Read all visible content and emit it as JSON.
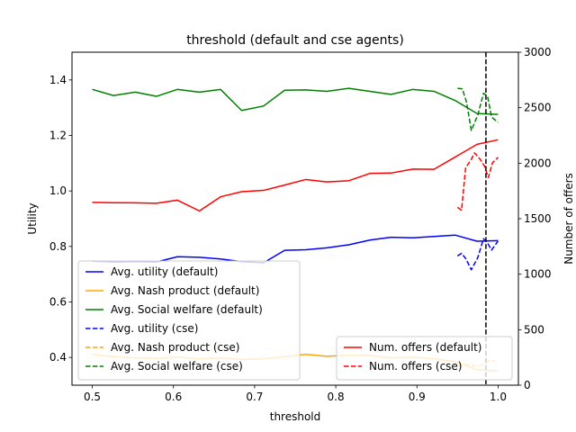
{
  "chart_data": {
    "type": "line",
    "title": "threshold (default and cse agents)",
    "xlabel": "threshold",
    "ylabel": "Utility",
    "y2label": "Number of offers",
    "xlim": [
      0.475,
      1.025
    ],
    "ylim": [
      0.3,
      1.5
    ],
    "y2lim": [
      0,
      3000
    ],
    "xticks": [
      "0.5",
      "0.6",
      "0.7",
      "0.8",
      "0.9",
      "1.0"
    ],
    "yticks": [
      "0.4",
      "0.6",
      "0.8",
      "1.0",
      "1.2",
      "1.4"
    ],
    "y2ticks": [
      "0",
      "500",
      "1000",
      "1500",
      "2000",
      "2500",
      "3000"
    ],
    "grid": false,
    "vline": {
      "x": 0.985,
      "color": "#000000",
      "style": "dashed"
    },
    "series": [
      {
        "name": "Avg. utility (default)",
        "axis": "left",
        "color": "#0000ff",
        "style": "solid",
        "x": [
          0.5,
          0.526,
          0.553,
          0.579,
          0.605,
          0.632,
          0.658,
          0.684,
          0.711,
          0.737,
          0.763,
          0.789,
          0.816,
          0.842,
          0.868,
          0.895,
          0.921,
          0.947,
          0.974,
          1.0
        ],
        "y": [
          0.747,
          0.744,
          0.745,
          0.744,
          0.763,
          0.761,
          0.755,
          0.745,
          0.741,
          0.786,
          0.788,
          0.795,
          0.806,
          0.823,
          0.833,
          0.831,
          0.836,
          0.841,
          0.819,
          0.821
        ]
      },
      {
        "name": "Avg. Nash product (default)",
        "axis": "left",
        "color": "#ffa500",
        "style": "solid",
        "x": [
          0.5,
          0.526,
          0.553,
          0.579,
          0.605,
          0.632,
          0.658,
          0.684,
          0.711,
          0.737,
          0.763,
          0.789,
          0.816,
          0.842,
          0.868,
          0.895,
          0.921,
          0.947,
          0.974,
          1.0
        ],
        "y": [
          0.411,
          0.403,
          0.398,
          0.396,
          0.401,
          0.395,
          0.398,
          0.393,
          0.395,
          0.403,
          0.411,
          0.404,
          0.408,
          0.407,
          0.398,
          0.401,
          0.395,
          0.385,
          0.355,
          0.352
        ]
      },
      {
        "name": "Avg. Social welfare (default)",
        "axis": "left",
        "color": "#008000",
        "style": "solid",
        "x": [
          0.5,
          0.526,
          0.553,
          0.579,
          0.605,
          0.632,
          0.658,
          0.684,
          0.711,
          0.737,
          0.763,
          0.789,
          0.816,
          0.842,
          0.868,
          0.895,
          0.921,
          0.947,
          0.974,
          1.0
        ],
        "y": [
          1.366,
          1.344,
          1.356,
          1.341,
          1.366,
          1.356,
          1.366,
          1.29,
          1.306,
          1.363,
          1.364,
          1.359,
          1.37,
          1.359,
          1.348,
          1.366,
          1.359,
          1.326,
          1.279,
          1.276
        ]
      },
      {
        "name": "Avg. utility (cse)",
        "axis": "left",
        "color": "#0000ff",
        "style": "dashed",
        "x": [
          0.95,
          0.955,
          0.96,
          0.967,
          0.975,
          0.982,
          0.987,
          0.992,
          1.0
        ],
        "y": [
          0.766,
          0.775,
          0.757,
          0.716,
          0.76,
          0.828,
          0.812,
          0.787,
          0.82
        ]
      },
      {
        "name": "Avg. Nash product (cse)",
        "axis": "left",
        "color": "#ffa500",
        "style": "dashed",
        "x": [
          0.95,
          0.96,
          0.97,
          0.98,
          0.99,
          1.0
        ],
        "y": [
          0.377,
          0.374,
          0.37,
          0.372,
          0.392,
          0.38
        ]
      },
      {
        "name": "Avg. Social welfare (cse)",
        "axis": "left",
        "color": "#008000",
        "style": "dashed",
        "x": [
          0.95,
          0.956,
          0.961,
          0.967,
          0.975,
          0.982,
          0.987,
          0.992,
          1.0
        ],
        "y": [
          1.37,
          1.368,
          1.321,
          1.218,
          1.274,
          1.352,
          1.341,
          1.266,
          1.247
        ]
      },
      {
        "name": "Num. offers (default)",
        "axis": "right",
        "color": "#ff0000",
        "style": "solid",
        "x": [
          0.5,
          0.526,
          0.553,
          0.579,
          0.605,
          0.632,
          0.658,
          0.684,
          0.711,
          0.737,
          0.763,
          0.789,
          0.816,
          0.842,
          0.868,
          0.895,
          0.921,
          0.947,
          0.974,
          1.0
        ],
        "y": [
          1647,
          1644,
          1643,
          1639,
          1667,
          1570,
          1697,
          1743,
          1755,
          1803,
          1853,
          1831,
          1842,
          1908,
          1911,
          1947,
          1945,
          2055,
          2170,
          2211
        ]
      },
      {
        "name": "Num. offers (cse)",
        "axis": "right",
        "color": "#ff0000",
        "style": "dashed",
        "x": [
          0.95,
          0.955,
          0.96,
          0.967,
          0.971,
          0.978,
          0.983,
          0.988,
          0.993,
          1.0
        ],
        "y": [
          1602,
          1577,
          1958,
          2035,
          2093,
          2035,
          1977,
          1871,
          2003,
          2053
        ]
      }
    ],
    "legends": [
      {
        "placement": "lower-left",
        "entries": [
          "Avg. utility (default)",
          "Avg. Nash product (default)",
          "Avg. Social welfare (default)",
          "Avg. utility (cse)",
          "Avg. Nash product (cse)",
          "Avg. Social welfare (cse)"
        ]
      },
      {
        "placement": "lower-right",
        "entries": [
          "Num. offers (default)",
          "Num. offers (cse)"
        ]
      }
    ]
  }
}
